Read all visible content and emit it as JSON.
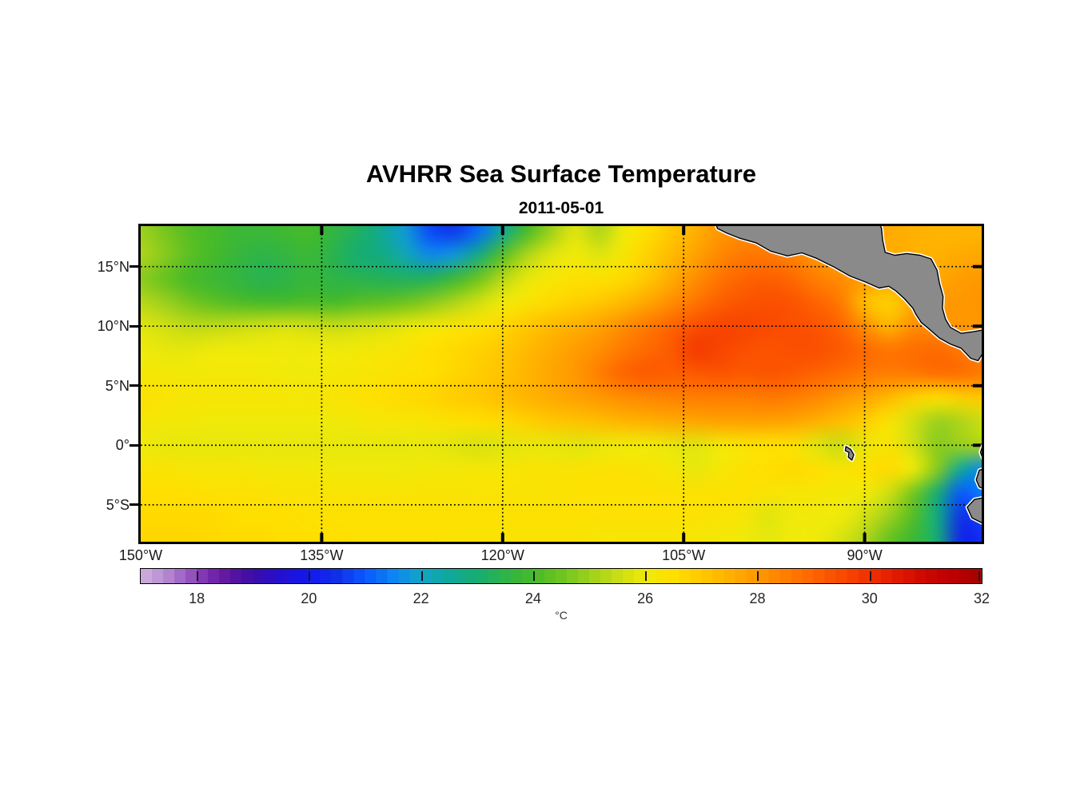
{
  "title": "AVHRR Sea Surface Temperature",
  "subtitle": "2011-05-01",
  "axes": {
    "lon_range": [
      -150,
      -80.3
    ],
    "lat_range": [
      -8.1,
      18.4
    ],
    "x_ticks": [
      {
        "lon": -150,
        "label": "150°W"
      },
      {
        "lon": -135,
        "label": "135°W"
      },
      {
        "lon": -120,
        "label": "120°W"
      },
      {
        "lon": -105,
        "label": "105°W"
      },
      {
        "lon": -90,
        "label": "90°W"
      }
    ],
    "y_ticks": [
      {
        "lat": 15,
        "label": "15°N"
      },
      {
        "lat": 10,
        "label": "10°N"
      },
      {
        "lat": 5,
        "label": "5°N"
      },
      {
        "lat": 0,
        "label": "0°"
      },
      {
        "lat": -5,
        "label": "5°S"
      }
    ]
  },
  "colorbar": {
    "label": "°C",
    "range": [
      17,
      32
    ],
    "ticks": [
      18,
      20,
      22,
      24,
      26,
      28,
      30,
      32
    ],
    "band_step": 0.2
  },
  "chart_data": {
    "type": "heatmap",
    "title": "AVHRR Sea Surface Temperature",
    "date": "2011-05-01",
    "units": "°C",
    "lons": [
      -150,
      -148,
      -146,
      -144,
      -142,
      -140,
      -138,
      -136,
      -134,
      -132,
      -130,
      -128,
      -126,
      -124,
      -122,
      -120,
      -118,
      -116,
      -114,
      -112,
      -110,
      -108,
      -106,
      -104,
      -102,
      -100,
      -98,
      -96,
      -94,
      -92,
      -90,
      -88,
      -86,
      -84,
      -82,
      -80
    ],
    "lats": [
      18,
      16,
      14,
      12,
      10,
      8,
      6,
      4,
      2,
      0,
      -2,
      -4,
      -6,
      -8
    ],
    "sst": [
      [
        25.0,
        24.6,
        24.2,
        24.0,
        23.8,
        23.8,
        23.9,
        24.0,
        23.6,
        23.2,
        22.6,
        21.8,
        20.8,
        20.6,
        21.2,
        22.5,
        24.0,
        25.0,
        25.8,
        25.2,
        26.0,
        26.5,
        27.0,
        27.5,
        28.0,
        28.2,
        28.3,
        28.0,
        27.8,
        27.8,
        27.8,
        27.6,
        27.5,
        27.4,
        27.4,
        27.4
      ],
      [
        25.2,
        24.8,
        24.3,
        24.0,
        23.7,
        23.5,
        23.6,
        23.8,
        23.4,
        23.0,
        22.8,
        22.2,
        21.6,
        21.8,
        22.8,
        24.2,
        25.2,
        25.8,
        26.0,
        25.8,
        26.2,
        26.8,
        27.3,
        27.8,
        28.3,
        28.6,
        28.6,
        28.4,
        28.0,
        27.9,
        27.8,
        27.6,
        27.5,
        27.5,
        27.6,
        27.7
      ],
      [
        24.8,
        24.4,
        24.0,
        23.8,
        23.6,
        23.4,
        23.5,
        23.7,
        23.5,
        23.4,
        23.3,
        23.2,
        23.3,
        23.8,
        24.5,
        25.3,
        25.9,
        26.2,
        26.4,
        26.4,
        26.6,
        27.0,
        27.6,
        28.2,
        28.7,
        29.0,
        29.1,
        28.9,
        28.5,
        28.2,
        28.0,
        27.8,
        27.7,
        27.7,
        27.9,
        28.0
      ],
      [
        25.3,
        25.0,
        24.6,
        24.3,
        24.1,
        24.0,
        24.0,
        24.1,
        24.0,
        24.2,
        24.3,
        24.5,
        24.8,
        25.2,
        25.6,
        26.0,
        26.3,
        26.6,
        26.8,
        27.0,
        27.3,
        27.7,
        28.2,
        28.7,
        29.1,
        29.3,
        29.4,
        29.3,
        29.0,
        28.6,
        27.2,
        26.8,
        27.6,
        28.0,
        28.0,
        28.1
      ],
      [
        25.8,
        25.6,
        25.4,
        25.4,
        25.5,
        25.6,
        25.7,
        25.6,
        25.5,
        25.6,
        25.7,
        25.9,
        26.1,
        26.3,
        26.4,
        26.7,
        27.0,
        27.3,
        27.5,
        27.8,
        28.2,
        28.6,
        29.0,
        29.4,
        29.6,
        29.6,
        29.5,
        29.4,
        29.3,
        29.0,
        28.2,
        27.4,
        28.2,
        28.2,
        28.0,
        28.0
      ],
      [
        26.0,
        25.9,
        25.9,
        26.0,
        26.0,
        26.0,
        26.0,
        26.0,
        26.0,
        26.1,
        26.2,
        26.3,
        26.5,
        26.6,
        26.8,
        27.0,
        27.3,
        27.6,
        27.9,
        28.2,
        28.6,
        28.9,
        29.2,
        29.8,
        29.6,
        29.4,
        29.3,
        29.4,
        29.4,
        29.2,
        28.9,
        28.7,
        28.8,
        28.9,
        28.6,
        28.3
      ],
      [
        26.2,
        26.1,
        26.1,
        26.1,
        26.1,
        26.1,
        26.0,
        26.0,
        26.1,
        26.2,
        26.3,
        26.4,
        26.5,
        26.7,
        26.9,
        27.1,
        27.4,
        27.7,
        28.0,
        28.5,
        29.0,
        29.2,
        29.1,
        29.2,
        29.3,
        29.2,
        29.3,
        29.2,
        29.0,
        28.8,
        28.6,
        28.5,
        28.6,
        28.8,
        28.8,
        28.6
      ],
      [
        26.4,
        26.3,
        26.2,
        26.2,
        26.2,
        26.2,
        26.2,
        26.2,
        26.3,
        26.4,
        26.5,
        26.6,
        26.7,
        26.9,
        27.0,
        27.2,
        27.4,
        27.6,
        27.8,
        28.0,
        28.2,
        28.3,
        28.4,
        28.5,
        28.5,
        28.5,
        28.6,
        28.5,
        28.3,
        28.0,
        27.7,
        27.3,
        26.8,
        26.5,
        26.8,
        27.0
      ],
      [
        26.2,
        26.1,
        26.1,
        26.0,
        26.0,
        26.0,
        26.0,
        26.0,
        26.0,
        26.1,
        26.2,
        26.2,
        26.3,
        26.4,
        26.5,
        26.6,
        26.8,
        27.0,
        27.1,
        27.2,
        27.4,
        27.5,
        27.6,
        27.7,
        27.8,
        27.8,
        27.8,
        27.7,
        27.5,
        27.2,
        26.9,
        26.3,
        25.6,
        25.0,
        25.2,
        25.6
      ],
      [
        26.0,
        25.9,
        25.9,
        25.9,
        25.9,
        25.9,
        25.9,
        25.9,
        25.9,
        25.9,
        25.9,
        25.9,
        25.9,
        25.8,
        25.7,
        25.8,
        25.9,
        25.9,
        25.8,
        25.9,
        26.0,
        26.0,
        25.9,
        25.8,
        26.1,
        26.3,
        26.4,
        26.4,
        25.8,
        25.5,
        25.9,
        26.3,
        25.6,
        24.8,
        25.0,
        25.2
      ],
      [
        26.3,
        26.3,
        26.2,
        26.2,
        26.2,
        26.1,
        26.1,
        26.1,
        26.0,
        26.0,
        26.0,
        26.0,
        26.1,
        26.1,
        26.2,
        26.2,
        26.3,
        26.3,
        26.3,
        26.4,
        26.4,
        26.3,
        26.2,
        25.9,
        26.2,
        26.4,
        26.5,
        26.6,
        26.5,
        26.3,
        26.5,
        26.6,
        26.0,
        24.8,
        22.5,
        21.5
      ],
      [
        26.5,
        26.5,
        26.5,
        26.4,
        26.4,
        26.4,
        26.3,
        26.3,
        26.3,
        26.3,
        26.3,
        26.3,
        26.3,
        26.3,
        26.3,
        26.3,
        26.3,
        26.3,
        26.4,
        26.4,
        26.4,
        26.4,
        26.4,
        26.4,
        26.4,
        26.4,
        26.3,
        26.2,
        26.2,
        26.1,
        26.0,
        25.6,
        24.6,
        23.0,
        21.0,
        21.5
      ],
      [
        26.6,
        26.6,
        26.6,
        26.6,
        26.5,
        26.5,
        26.5,
        26.4,
        26.4,
        26.4,
        26.4,
        26.4,
        26.4,
        26.4,
        26.4,
        26.4,
        26.4,
        26.4,
        26.4,
        26.4,
        26.4,
        26.4,
        26.4,
        26.4,
        26.3,
        26.2,
        25.8,
        26.0,
        26.0,
        26.0,
        25.6,
        25.0,
        24.2,
        22.8,
        20.5,
        20.8
      ],
      [
        26.7,
        26.7,
        26.7,
        26.6,
        26.6,
        26.6,
        26.5,
        26.5,
        26.5,
        26.4,
        26.4,
        26.4,
        26.4,
        26.3,
        26.3,
        26.3,
        26.3,
        26.3,
        26.3,
        26.2,
        26.2,
        26.2,
        26.2,
        26.2,
        26.1,
        26.0,
        25.9,
        26.0,
        26.0,
        25.7,
        25.2,
        24.4,
        23.8,
        23.0,
        20.2,
        20.5
      ]
    ],
    "colormap": [
      {
        "v": 17.0,
        "c": "#cfb2de"
      },
      {
        "v": 17.4,
        "c": "#b98fd3"
      },
      {
        "v": 17.8,
        "c": "#9c5fc4"
      },
      {
        "v": 18.2,
        "c": "#7a2aae"
      },
      {
        "v": 18.6,
        "c": "#5a149e"
      },
      {
        "v": 19.0,
        "c": "#3c0ca8"
      },
      {
        "v": 19.5,
        "c": "#2410cf"
      },
      {
        "v": 20.0,
        "c": "#1418f0"
      },
      {
        "v": 20.5,
        "c": "#1030e8"
      },
      {
        "v": 21.0,
        "c": "#0a58ff"
      },
      {
        "v": 21.5,
        "c": "#0c84f4"
      },
      {
        "v": 22.0,
        "c": "#12a4c8"
      },
      {
        "v": 22.5,
        "c": "#0fa89c"
      },
      {
        "v": 23.0,
        "c": "#16ad72"
      },
      {
        "v": 23.5,
        "c": "#2eb448"
      },
      {
        "v": 24.0,
        "c": "#46ba2a"
      },
      {
        "v": 24.5,
        "c": "#6ec41e"
      },
      {
        "v": 25.0,
        "c": "#9cd01e"
      },
      {
        "v": 25.5,
        "c": "#c8dd14"
      },
      {
        "v": 26.0,
        "c": "#f0ea0a"
      },
      {
        "v": 26.5,
        "c": "#ffdf00"
      },
      {
        "v": 27.0,
        "c": "#ffc800"
      },
      {
        "v": 27.5,
        "c": "#ffb000"
      },
      {
        "v": 28.0,
        "c": "#ff9800"
      },
      {
        "v": 28.5,
        "c": "#ff7e00"
      },
      {
        "v": 29.0,
        "c": "#fe6400"
      },
      {
        "v": 29.5,
        "c": "#f94a00"
      },
      {
        "v": 30.0,
        "c": "#f03000"
      },
      {
        "v": 30.5,
        "c": "#e01800"
      },
      {
        "v": 31.0,
        "c": "#cd0600"
      },
      {
        "v": 31.5,
        "c": "#ba0000"
      },
      {
        "v": 32.0,
        "c": "#a50000"
      }
    ],
    "land_color": "#8a8a8a",
    "coast_halo": "#ffffff",
    "land_polygons": [
      {
        "name": "central-america",
        "points": [
          [
            -102.4,
            18.8
          ],
          [
            -102.2,
            18.2
          ],
          [
            -101.4,
            17.8
          ],
          [
            -100.4,
            17.4
          ],
          [
            -99.0,
            17.0
          ],
          [
            -97.8,
            16.3
          ],
          [
            -96.4,
            15.9
          ],
          [
            -95.2,
            16.15
          ],
          [
            -94.0,
            15.7
          ],
          [
            -92.6,
            15.0
          ],
          [
            -91.2,
            14.2
          ],
          [
            -89.9,
            13.7
          ],
          [
            -88.8,
            13.2
          ],
          [
            -88.0,
            13.35
          ],
          [
            -87.4,
            12.95
          ],
          [
            -86.7,
            12.3
          ],
          [
            -86.0,
            11.5
          ],
          [
            -85.75,
            11.0
          ],
          [
            -85.3,
            10.3
          ],
          [
            -84.7,
            9.8
          ],
          [
            -83.8,
            9.0
          ],
          [
            -82.9,
            8.5
          ],
          [
            -82.0,
            8.15
          ],
          [
            -81.2,
            7.3
          ],
          [
            -80.6,
            7.1
          ],
          [
            -80.25,
            7.65
          ],
          [
            -79.6,
            7.3
          ],
          [
            -79.6,
            9.8
          ],
          [
            -80.9,
            9.55
          ],
          [
            -82.0,
            9.4
          ],
          [
            -82.9,
            9.9
          ],
          [
            -83.3,
            10.6
          ],
          [
            -83.55,
            11.5
          ],
          [
            -83.5,
            12.5
          ],
          [
            -83.8,
            13.6
          ],
          [
            -84.0,
            14.7
          ],
          [
            -84.5,
            15.65
          ],
          [
            -85.4,
            15.95
          ],
          [
            -86.5,
            16.1
          ],
          [
            -87.5,
            15.95
          ],
          [
            -88.3,
            16.2
          ],
          [
            -88.5,
            17.2
          ],
          [
            -88.6,
            18.2
          ],
          [
            -88.8,
            18.8
          ]
        ]
      },
      {
        "name": "south-america-ecuador-north",
        "points": [
          [
            -79.6,
            0.3
          ],
          [
            -80.2,
            0.0
          ],
          [
            -80.4,
            -0.6
          ],
          [
            -80.2,
            -1.1
          ],
          [
            -79.6,
            -1.2
          ]
        ]
      },
      {
        "name": "south-america-ecuador",
        "points": [
          [
            -79.6,
            -1.8
          ],
          [
            -80.5,
            -2.1
          ],
          [
            -80.75,
            -2.9
          ],
          [
            -80.5,
            -3.5
          ],
          [
            -79.6,
            -3.9
          ]
        ]
      },
      {
        "name": "south-america-peru",
        "points": [
          [
            -79.6,
            -4.3
          ],
          [
            -80.9,
            -4.55
          ],
          [
            -81.5,
            -5.2
          ],
          [
            -81.1,
            -6.1
          ],
          [
            -80.3,
            -6.5
          ],
          [
            -79.6,
            -6.7
          ]
        ]
      },
      {
        "name": "galapagos",
        "points": [
          [
            -91.55,
            -0.1
          ],
          [
            -91.15,
            -0.35
          ],
          [
            -90.9,
            -0.8
          ],
          [
            -91.05,
            -1.25
          ],
          [
            -91.35,
            -1.0
          ],
          [
            -91.3,
            -0.6
          ],
          [
            -91.6,
            -0.45
          ]
        ]
      }
    ]
  }
}
